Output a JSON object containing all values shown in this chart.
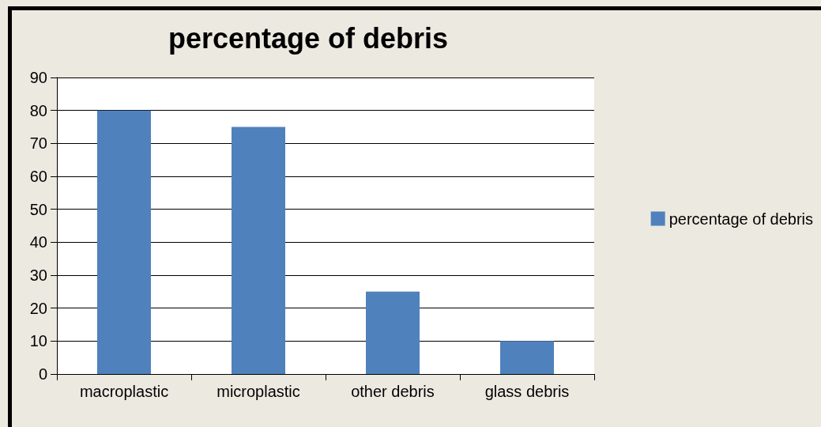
{
  "chart_data": {
    "type": "bar",
    "title": "percentage of debris",
    "categories": [
      "macroplastic",
      "microplastic",
      "other debris",
      "glass debris"
    ],
    "series": [
      {
        "name": "percentage of debris",
        "color": "#4f81bd",
        "values": [
          80,
          75,
          25,
          10
        ]
      }
    ],
    "ylim": [
      0,
      90
    ],
    "yticks": [
      0,
      10,
      20,
      30,
      40,
      50,
      60,
      70,
      80,
      90
    ],
    "grid": "y",
    "legend": "right"
  }
}
